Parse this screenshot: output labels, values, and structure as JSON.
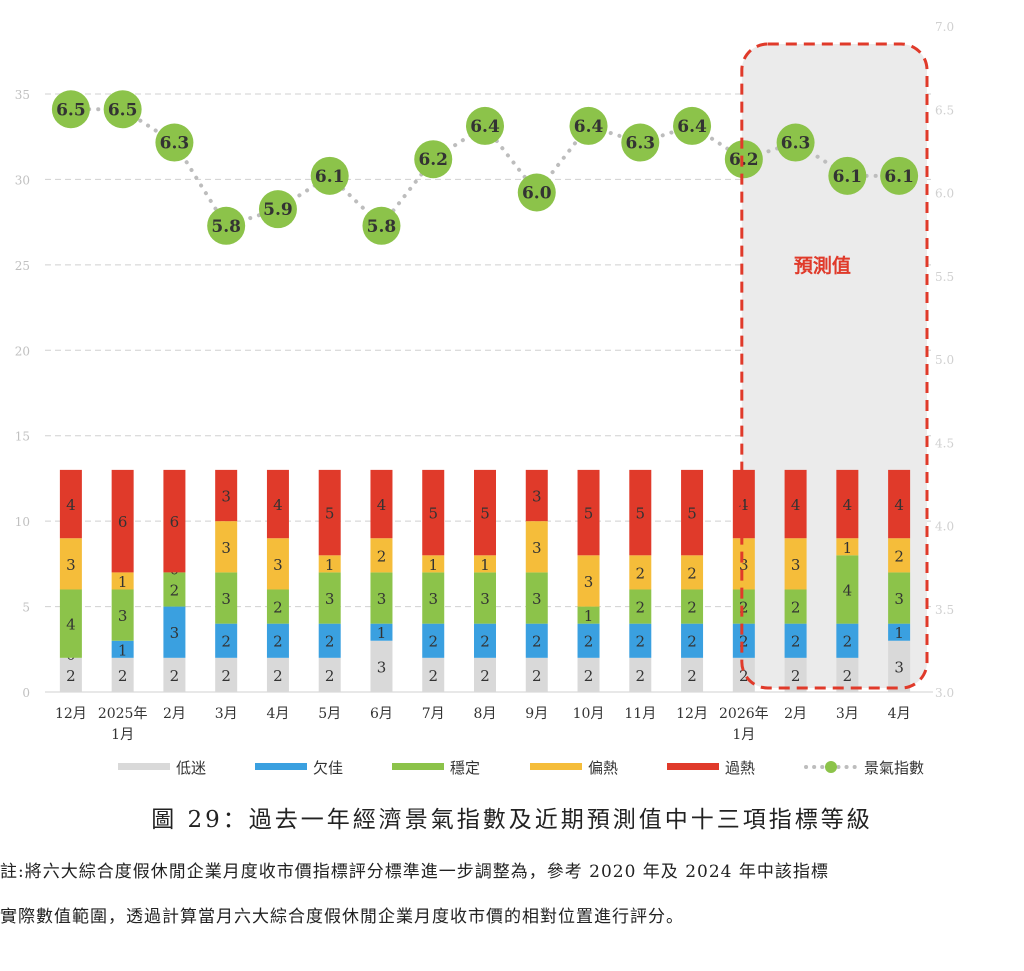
{
  "chart_data": {
    "type": "bar",
    "categories": [
      [
        "12月"
      ],
      [
        "2025年",
        "1月"
      ],
      [
        "2月"
      ],
      [
        "3月"
      ],
      [
        "4月"
      ],
      [
        "5月"
      ],
      [
        "6月"
      ],
      [
        "7月"
      ],
      [
        "8月"
      ],
      [
        "9月"
      ],
      [
        "10月"
      ],
      [
        "11月"
      ],
      [
        "12月"
      ],
      [
        "2026年",
        "1月"
      ],
      [
        "2月"
      ],
      [
        "3月"
      ],
      [
        "4月"
      ]
    ],
    "stack_series": [
      {
        "name": "低迷",
        "color": "#d9d9d9",
        "values": [
          2,
          2,
          2,
          2,
          2,
          2,
          3,
          2,
          2,
          2,
          2,
          2,
          2,
          2,
          2,
          2,
          3
        ]
      },
      {
        "name": "欠佳",
        "color": "#3aa0e0",
        "values": [
          0,
          1,
          3,
          2,
          2,
          2,
          1,
          2,
          2,
          2,
          2,
          2,
          2,
          2,
          2,
          2,
          1
        ]
      },
      {
        "name": "穩定",
        "color": "#8cc34a",
        "values": [
          4,
          3,
          2,
          3,
          2,
          3,
          3,
          3,
          3,
          3,
          1,
          2,
          2,
          2,
          2,
          4,
          3
        ]
      },
      {
        "name": "偏熱",
        "color": "#f5bd3a",
        "values": [
          3,
          1,
          0,
          3,
          3,
          1,
          2,
          1,
          1,
          3,
          3,
          2,
          2,
          3,
          3,
          1,
          2
        ]
      },
      {
        "name": "過熱",
        "color": "#e03a2a",
        "values": [
          4,
          6,
          6,
          3,
          4,
          5,
          4,
          5,
          5,
          3,
          5,
          5,
          5,
          4,
          4,
          4,
          4
        ]
      }
    ],
    "line_series": {
      "name": "景氣指數",
      "color": "#8cc34a",
      "values": [
        6.5,
        6.5,
        6.3,
        5.8,
        5.9,
        6.1,
        5.8,
        6.2,
        6.4,
        6.0,
        6.4,
        6.3,
        6.4,
        6.2,
        6.3,
        6.1,
        6.1
      ]
    },
    "ylim_left": [
      0,
      35
    ],
    "yticks_left": [
      "0",
      "5",
      "10",
      "15",
      "20",
      "25",
      "30",
      "35"
    ],
    "ylim_right": [
      3.0,
      7.0
    ],
    "yticks_right": [
      "3.0",
      "3.5",
      "4.0",
      "4.5",
      "5.0",
      "5.5",
      "6.0",
      "6.5",
      "7.0"
    ],
    "grid": true,
    "forecast_label": "預測值",
    "forecast_from_index": 13,
    "legend_position": "bottom"
  },
  "caption": "圖 29：過去一年經濟景氣指數及近期預測值中十三項指標等級",
  "note_line1": "註:將六大綜合度假休閒企業月度收市價指標評分標準進一步調整為，參考 2020 年及 2024 年中該指標",
  "note_line2": "實際數值範圍，透過計算當月六大綜合度假休閒企業月度收市價的相對位置進行評分。",
  "colors": {
    "forecast_border": "#e03a2a",
    "forecast_fill": "#ebebeb",
    "dotted_line": "#bdbdbd"
  }
}
